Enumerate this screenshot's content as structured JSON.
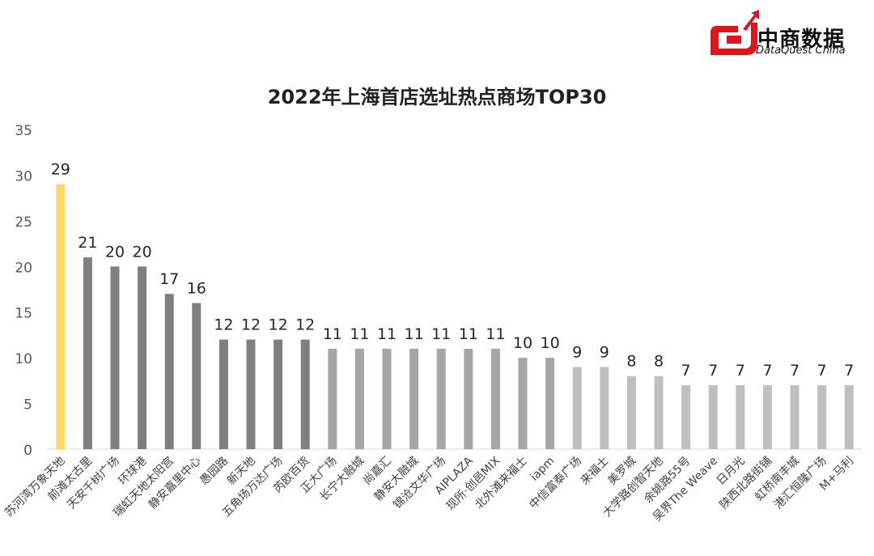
{
  "brand": {
    "name_cn": "中商数据",
    "name_en": "DataQuest China",
    "color": "#e0141d"
  },
  "chart_data": {
    "type": "bar",
    "title": "2022年上海首店选址热点商场TOP30",
    "xlabel": "",
    "ylabel": "",
    "ylim": [
      0,
      35
    ],
    "yticks": [
      0,
      5,
      10,
      15,
      20,
      25,
      30,
      35
    ],
    "grid": false,
    "categories": [
      "苏河湾万象天地",
      "前滩太古里",
      "天安千树广场",
      "环球港",
      "瑞虹天地太阳宫",
      "静安嘉里中心",
      "愚园路",
      "新天地",
      "五角场万达广场",
      "芮欧百货",
      "正大广场",
      "长宁大融城",
      "尚嘉汇",
      "静安大融城",
      "锦沧文华广场",
      "AIPLAZA",
      "现所·创邑MIX",
      "北外滩来福士",
      "iapm",
      "中信富泰广场",
      "来福士",
      "美罗城",
      "大学路创智天地",
      "余姚路55号",
      "吴界The Weave",
      "日月光",
      "陕西北路街铺",
      "虹桥南丰城",
      "港汇恒隆广场",
      "M+马利"
    ],
    "values": [
      29,
      21,
      20,
      20,
      17,
      16,
      12,
      12,
      12,
      12,
      11,
      11,
      11,
      11,
      11,
      11,
      11,
      10,
      10,
      9,
      9,
      8,
      8,
      7,
      7,
      7,
      7,
      7,
      7,
      7
    ],
    "colors": {
      "top": "#ffd966",
      "dark": "#7f7f7f",
      "medium": "#a6a6a6",
      "light": "#bfbfbf"
    }
  }
}
